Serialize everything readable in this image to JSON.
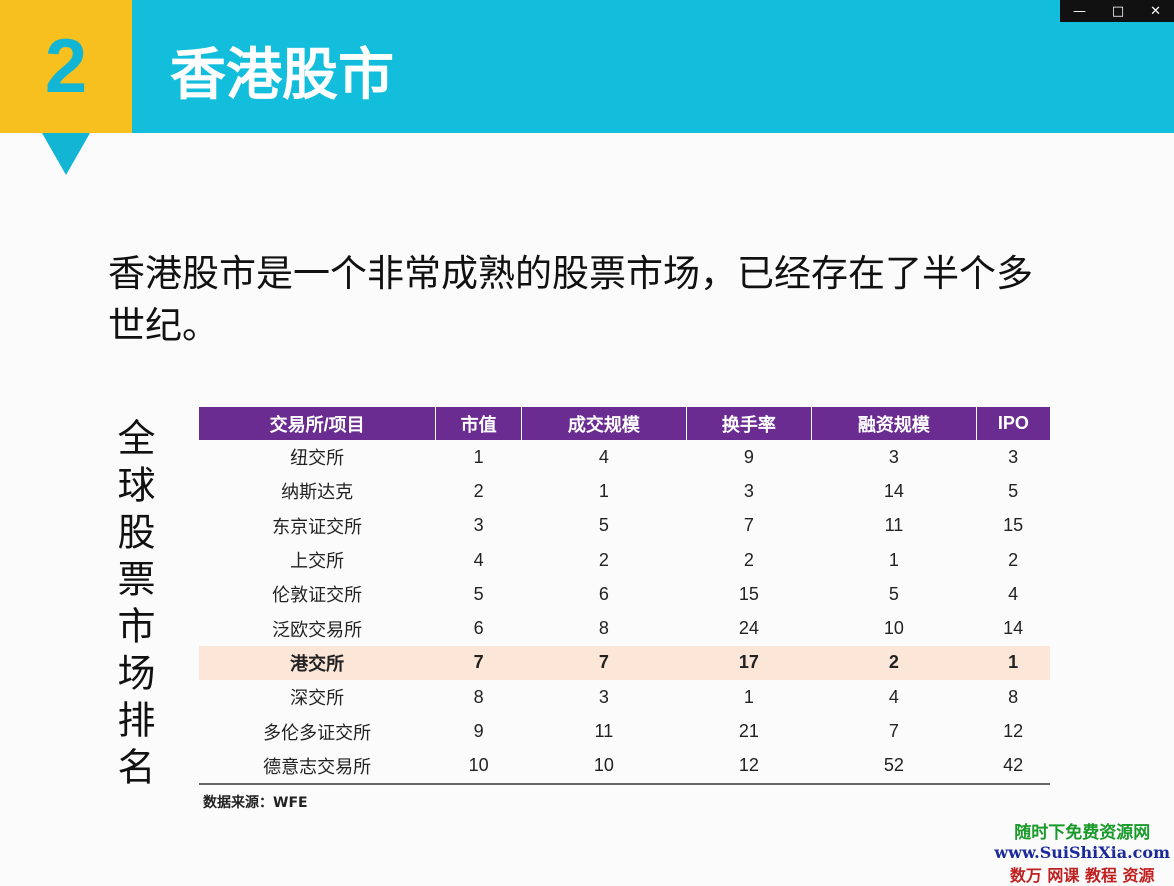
{
  "header": {
    "number": "2",
    "title": "香港股市"
  },
  "body": "香港股市是一个非常成熟的股票市场，已经存在了半个多世纪。",
  "side_label": "全球股票市场排名",
  "table": {
    "columns": [
      "交易所/项目",
      "市值",
      "成交规模",
      "换手率",
      "融资规模",
      "IPO"
    ],
    "highlight_row": 6,
    "rows": [
      [
        "纽交所",
        1,
        4,
        9,
        3,
        3
      ],
      [
        "纳斯达克",
        2,
        1,
        3,
        14,
        5
      ],
      [
        "东京证交所",
        3,
        5,
        7,
        11,
        15
      ],
      [
        "上交所",
        4,
        2,
        2,
        1,
        2
      ],
      [
        "伦敦证交所",
        5,
        6,
        15,
        5,
        4
      ],
      [
        "泛欧交易所",
        6,
        8,
        24,
        10,
        14
      ],
      [
        "港交所",
        7,
        7,
        17,
        2,
        1
      ],
      [
        "深交所",
        8,
        3,
        1,
        4,
        8
      ],
      [
        "多伦多证交所",
        9,
        11,
        21,
        7,
        12
      ],
      [
        "德意志交易所",
        10,
        10,
        12,
        52,
        42
      ]
    ]
  },
  "source": "数据来源：WFE",
  "watermark": {
    "line1": "随时下免费资源网",
    "line2": "www.SuiShiXia.com",
    "line3": "数万 网课 教程 资源"
  }
}
